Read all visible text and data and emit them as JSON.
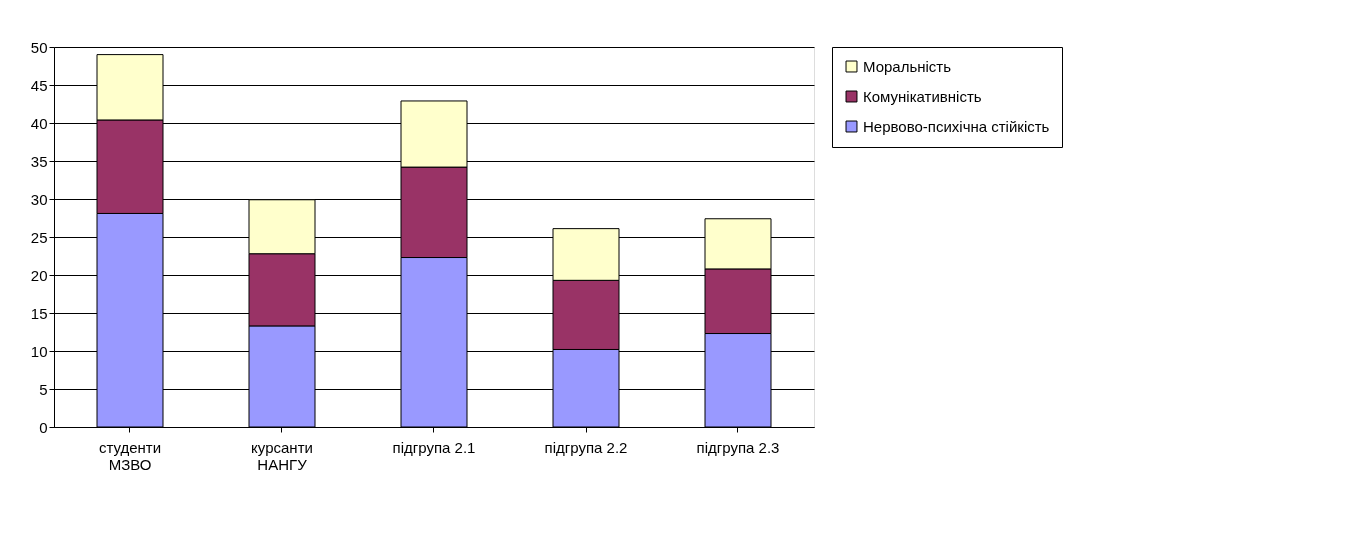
{
  "chart_data": {
    "type": "bar",
    "stacked": true,
    "categories": [
      "студенти\nМЗВО",
      "курсанти\nНАНГУ",
      "підгрупа 2.1",
      "підгрупа 2.2",
      "підгрупа 2.3"
    ],
    "series": [
      {
        "name": "Нервово-психічна стійкість",
        "color": "#9999ff",
        "values": [
          28.1,
          13.3,
          22.3,
          10.2,
          12.3
        ]
      },
      {
        "name": "Комунікативність",
        "color": "#993366",
        "values": [
          12.3,
          9.5,
          11.9,
          9.1,
          8.5
        ]
      },
      {
        "name": "Моральність",
        "color": "#ffffcc",
        "values": [
          8.6,
          7.1,
          8.7,
          6.8,
          6.6
        ]
      }
    ],
    "ylim": [
      0,
      50
    ],
    "yticks": [
      0,
      5,
      10,
      15,
      20,
      25,
      30,
      35,
      40,
      45,
      50
    ],
    "grid": "y",
    "legend": "right"
  }
}
